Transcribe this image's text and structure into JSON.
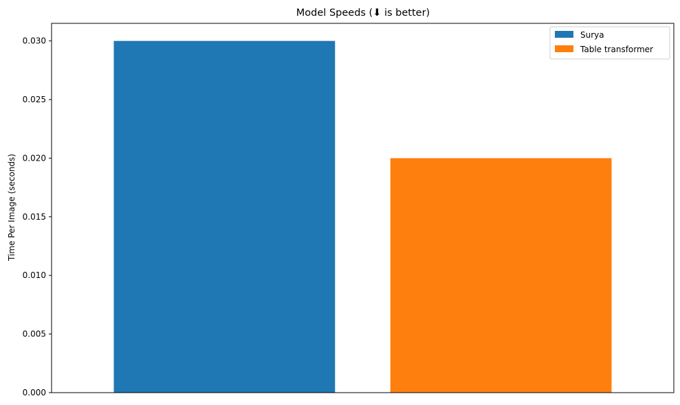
{
  "chart_data": {
    "type": "bar",
    "title": "Model Speeds (⬇ is better)",
    "xlabel": "",
    "ylabel": "Time Per Image (seconds)",
    "ylim": [
      0,
      0.0315
    ],
    "yticks": [
      0.0,
      0.005,
      0.01,
      0.015,
      0.02,
      0.025,
      0.03
    ],
    "ytick_labels": [
      "0.000",
      "0.005",
      "0.010",
      "0.015",
      "0.020",
      "0.025",
      "0.030"
    ],
    "grid": false,
    "legend_position": "top-right",
    "series": [
      {
        "name": "Surya",
        "value": 0.03,
        "color": "#1f77b4"
      },
      {
        "name": "Table transformer",
        "value": 0.02,
        "color": "#ff7f0e"
      }
    ]
  }
}
